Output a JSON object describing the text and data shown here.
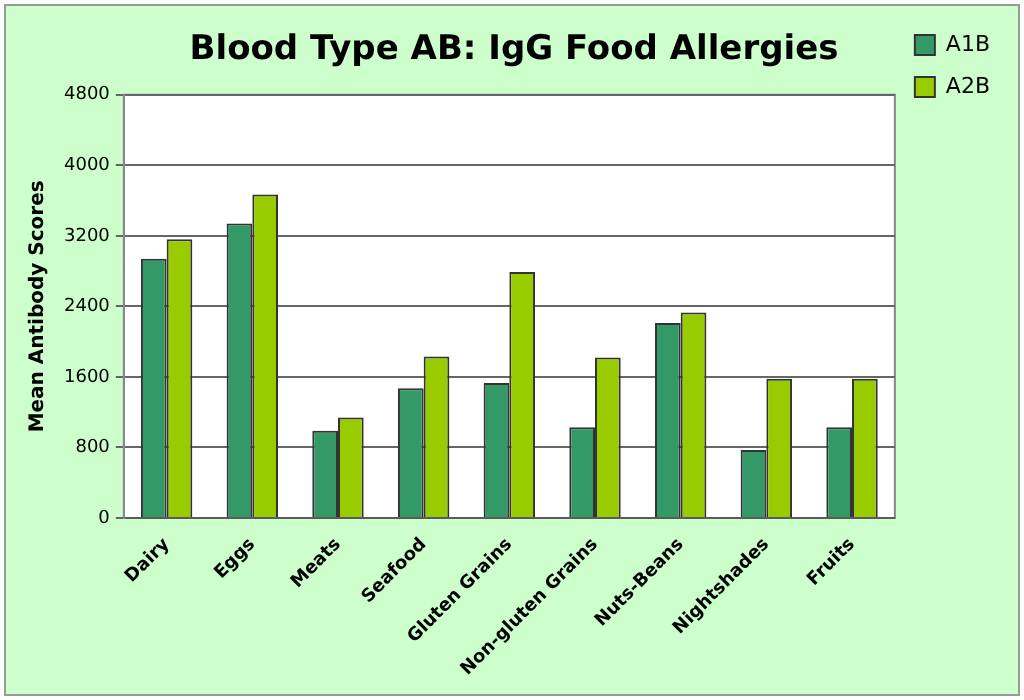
{
  "chart_data": {
    "type": "bar",
    "title": "Blood Type AB: IgG Food Allergies",
    "ylabel": "Mean Antibody Scores",
    "categories": [
      "Dairy",
      "Eggs",
      "Meats",
      "Seafood",
      "Gluten Grains",
      "Non-gluten Grains",
      "Nuts-Beans",
      "Nightshades",
      "Fruits"
    ],
    "series": [
      {
        "name": "A1B",
        "color": "#339966",
        "values": [
          2940,
          3340,
          990,
          1470,
          1530,
          1030,
          2210,
          770,
          1030
        ]
      },
      {
        "name": "A2B",
        "color": "#99cc00",
        "values": [
          3160,
          3670,
          1140,
          1830,
          2790,
          1820,
          2330,
          1580,
          1580
        ]
      }
    ],
    "ylim": [
      0,
      4800
    ],
    "yticks": [
      0,
      800,
      1600,
      2400,
      3200,
      4000,
      4800
    ],
    "grid": "y",
    "legend": "right"
  }
}
